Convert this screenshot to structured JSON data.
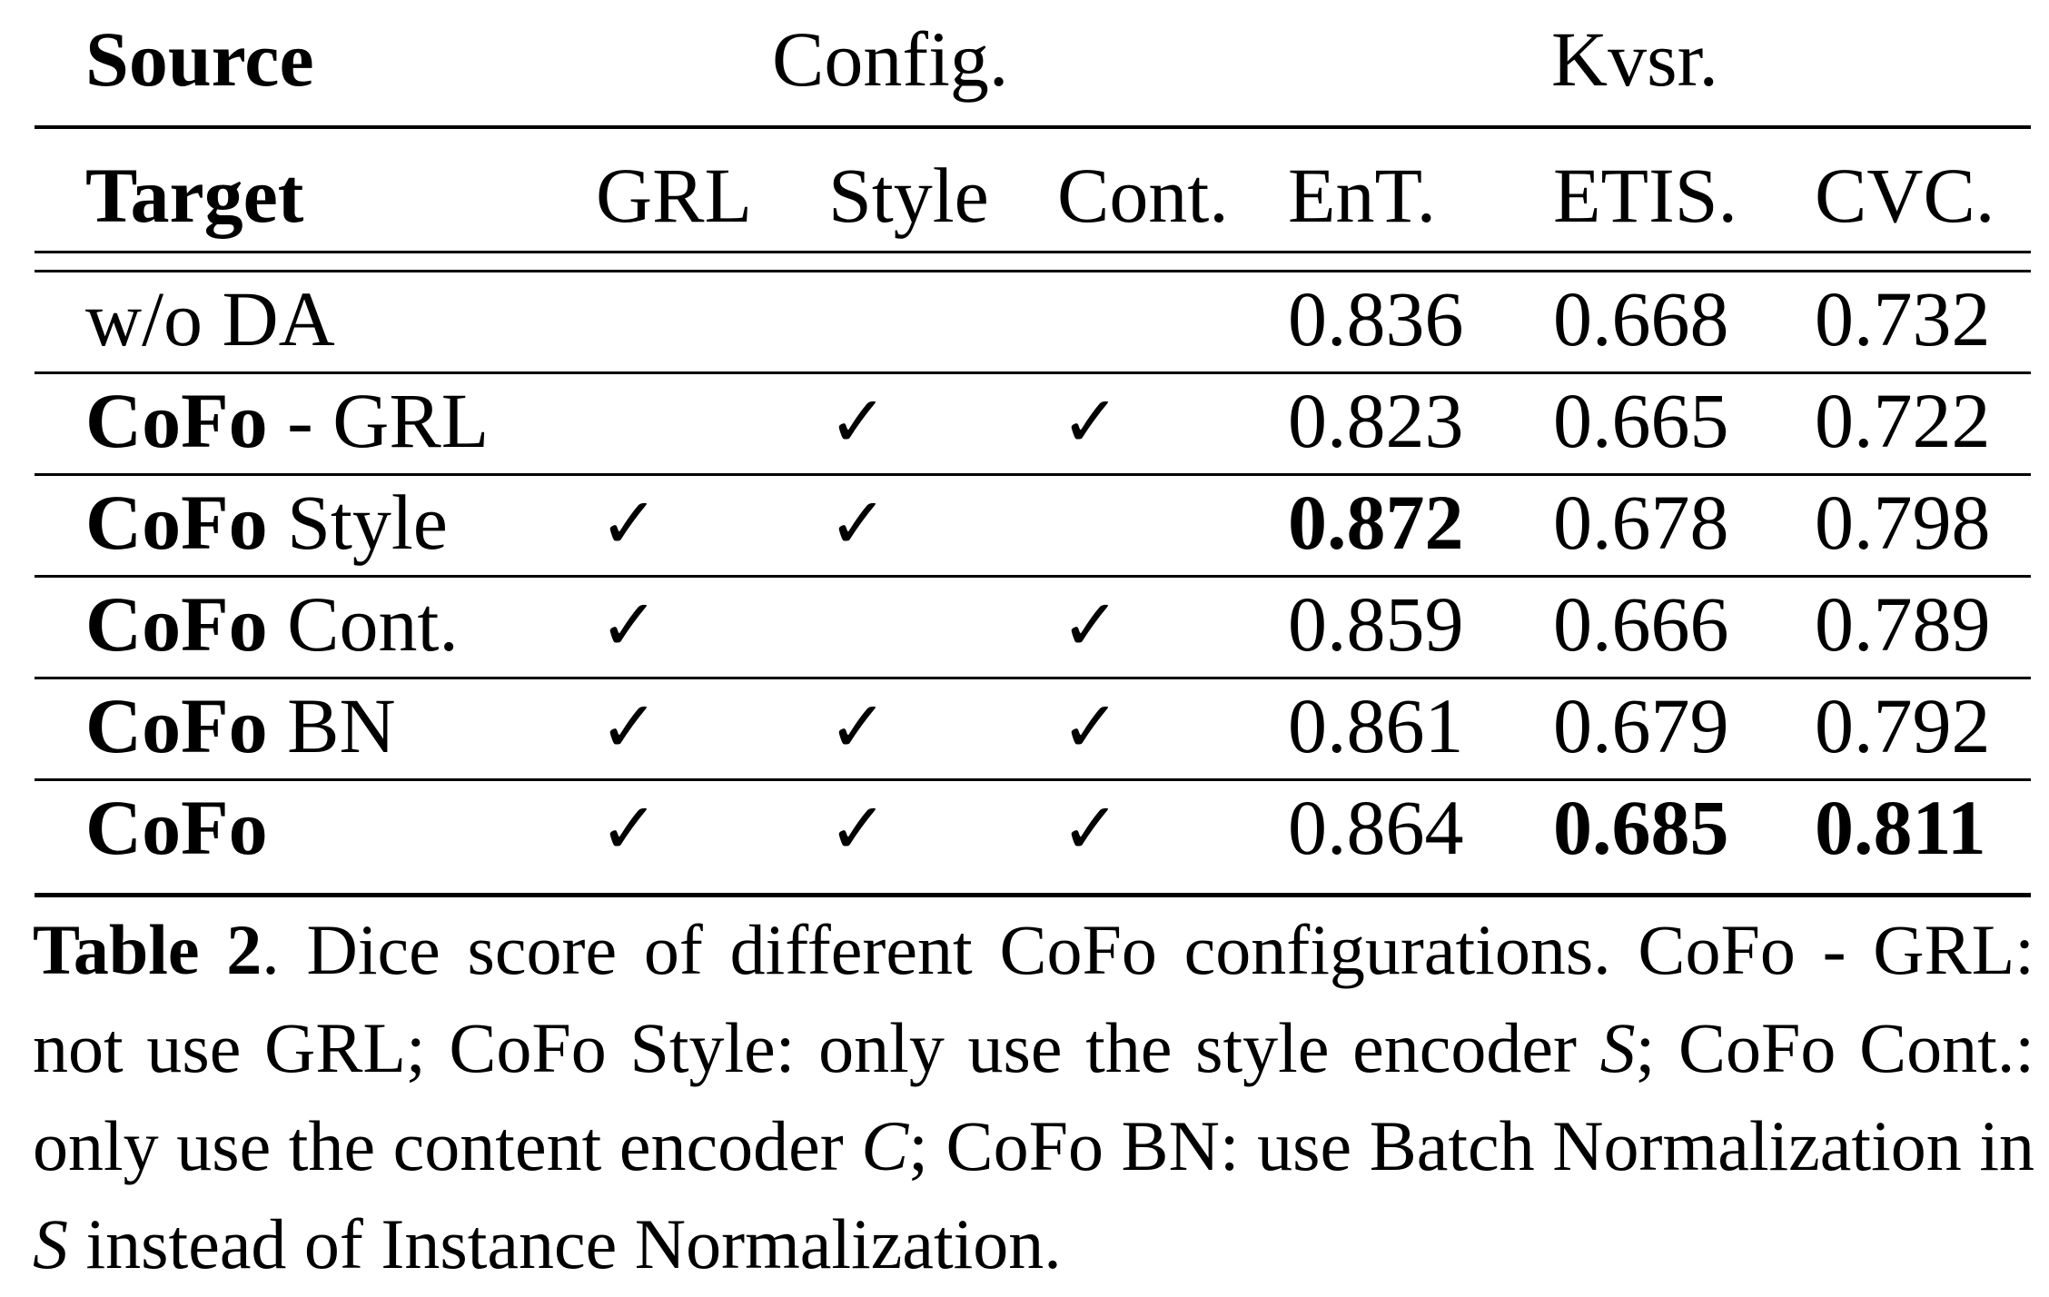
{
  "table": {
    "header_top": {
      "source": "Source",
      "config": "Config.",
      "kvsr": "Kvsr."
    },
    "header_sub": {
      "target": "Target",
      "grl": "GRL",
      "style": "Style",
      "cont": "Cont.",
      "ent": "EnT.",
      "etis": "ETIS.",
      "cvc": "CVC."
    },
    "rows": [
      {
        "name_bold": "",
        "name_rest": "w/o DA",
        "grl": "",
        "style": "",
        "cont": "",
        "ent": "0.836",
        "etis": "0.668",
        "cvc": "0.732"
      },
      {
        "name_bold": "CoFo",
        "name_rest": " - GRL",
        "grl": "",
        "style": "✓",
        "cont": "✓",
        "ent": "0.823",
        "etis": "0.665",
        "cvc": "0.722"
      },
      {
        "name_bold": "CoFo",
        "name_rest": " Style",
        "grl": "✓",
        "style": "✓",
        "cont": "",
        "ent": "0.872",
        "etis": "0.678",
        "cvc": "0.798"
      },
      {
        "name_bold": "CoFo",
        "name_rest": " Cont.",
        "grl": "✓",
        "style": "",
        "cont": "✓",
        "ent": "0.859",
        "etis": "0.666",
        "cvc": "0.789"
      },
      {
        "name_bold": "CoFo",
        "name_rest": " BN",
        "grl": "✓",
        "style": "✓",
        "cont": "✓",
        "ent": "0.861",
        "etis": "0.679",
        "cvc": "0.792"
      },
      {
        "name_bold": "CoFo",
        "name_rest": "",
        "grl": "✓",
        "style": "✓",
        "cont": "✓",
        "ent": "0.864",
        "etis": "0.685",
        "cvc": "0.811"
      }
    ]
  },
  "caption": {
    "label": "Table 2",
    "p1": ". Dice score of different CoFo configurations. CoFo - GRL: not use GRL; CoFo Style: only use the style encoder ",
    "s1": "S",
    "p2": "; CoFo Cont.: only use the content encoder ",
    "c1": "C",
    "p3": "; CoFo BN: use Batch Normalization in ",
    "s2": "S",
    "p4": " instead of Instance Normalization."
  }
}
